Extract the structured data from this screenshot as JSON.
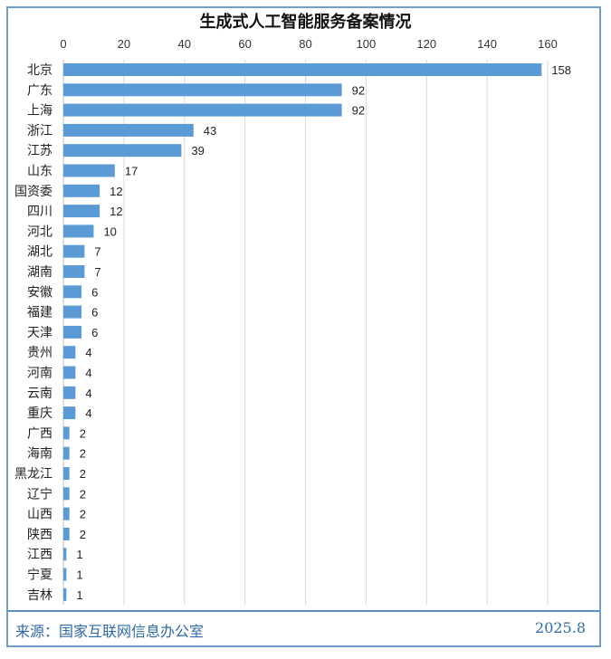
{
  "chart_data": {
    "type": "bar",
    "orientation": "horizontal",
    "title": "生成式人工智能服务备案情况",
    "categories": [
      "北京",
      "广东",
      "上海",
      "浙江",
      "江苏",
      "山东",
      "国资委",
      "四川",
      "河北",
      "湖北",
      "湖南",
      "安徽",
      "福建",
      "天津",
      "贵州",
      "河南",
      "云南",
      "重庆",
      "广西",
      "海南",
      "黑龙江",
      "辽宁",
      "山西",
      "陕西",
      "江西",
      "宁夏",
      "吉林"
    ],
    "values": [
      158,
      92,
      92,
      43,
      39,
      17,
      12,
      12,
      10,
      7,
      7,
      6,
      6,
      6,
      4,
      4,
      4,
      4,
      2,
      2,
      2,
      2,
      2,
      2,
      1,
      1,
      1
    ],
    "xlim": [
      0,
      160
    ],
    "xticks": [
      0,
      20,
      40,
      60,
      80,
      100,
      120,
      140,
      160
    ],
    "x_axis_position": "top",
    "grid": true,
    "data_labels": true,
    "bar_color": "#5b9bd5"
  },
  "footer": {
    "source": "来源：国家互联网信息办公室",
    "date": "2025.8"
  }
}
